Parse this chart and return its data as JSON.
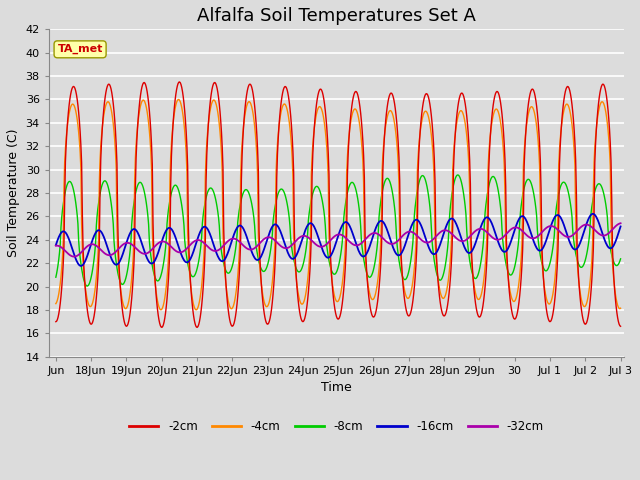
{
  "title": "Alfalfa Soil Temperatures Set A",
  "xlabel": "Time",
  "ylabel": "Soil Temperature (C)",
  "ylim": [
    14,
    42
  ],
  "yticks": [
    14,
    16,
    18,
    20,
    22,
    24,
    26,
    28,
    30,
    32,
    34,
    36,
    38,
    40,
    42
  ],
  "background_color": "#dcdcdc",
  "plot_bg_color": "#dcdcdc",
  "grid_color": "#ffffff",
  "line_colors": {
    "-2cm": "#dd0000",
    "-4cm": "#ff8800",
    "-8cm": "#00cc00",
    "-16cm": "#0000cc",
    "-32cm": "#aa00aa"
  },
  "legend_labels": [
    "-2cm",
    "-4cm",
    "-8cm",
    "-16cm",
    "-32cm"
  ],
  "annotation_text": "TA_met",
  "annotation_bg": "#ffffaa",
  "annotation_border": "#999900",
  "annotation_text_color": "#cc0000",
  "x_tick_labels": [
    "Jun",
    "18Jun",
    "19Jun",
    "20Jun",
    "21Jun",
    "22Jun",
    "23Jun",
    "24Jun",
    "25Jun",
    "26Jun",
    "27Jun",
    "28Jun",
    "29Jun",
    "30",
    "Jul 1",
    "Jul 2",
    "Jul 3"
  ],
  "title_fontsize": 13,
  "axis_label_fontsize": 9,
  "tick_fontsize": 8,
  "figwidth": 6.4,
  "figheight": 4.8,
  "dpi": 100
}
